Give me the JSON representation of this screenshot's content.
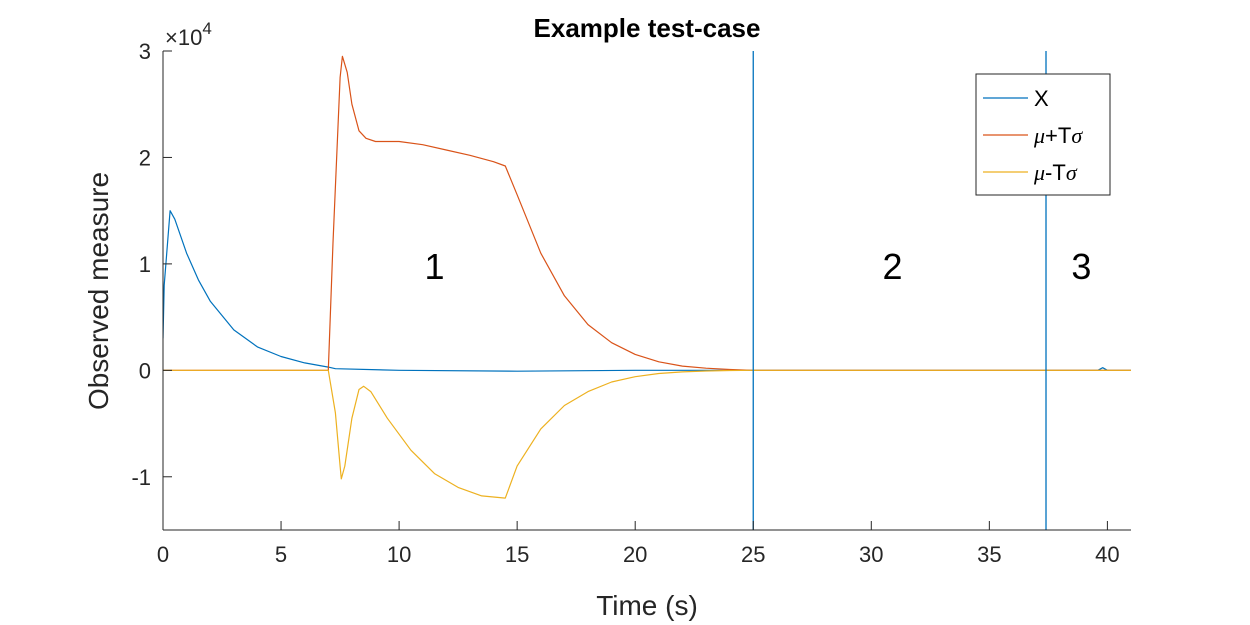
{
  "chart_data": {
    "type": "line",
    "title": "Example test-case",
    "xlabel": "Time (s)",
    "ylabel": "Observed measure",
    "xlim": [
      0,
      41
    ],
    "ylim": [
      -15000,
      30000
    ],
    "x_ticks": [
      0,
      5,
      10,
      15,
      20,
      25,
      30,
      35,
      40
    ],
    "y_ticks": [
      -10000,
      0,
      10000,
      20000,
      30000
    ],
    "y_tick_labels": [
      "-1",
      "0",
      "1",
      "2",
      "3"
    ],
    "y_multiplier": {
      "base": "×10",
      "exponent": "4"
    },
    "grid": false,
    "legend_position": "top-right",
    "vertical_lines": [
      25,
      37.4
    ],
    "region_labels": [
      {
        "text": "1",
        "x": 11.5,
        "y": 9800
      },
      {
        "text": "2",
        "x": 30.9,
        "y": 9800
      },
      {
        "text": "3",
        "x": 38.9,
        "y": 9800
      }
    ],
    "colors": {
      "X": "#0072BD",
      "upper": "#D95319",
      "lower": "#EDB120",
      "vline": "#0072BD",
      "axis": "#262626"
    },
    "series": [
      {
        "key": "X",
        "name_parts": [
          "X"
        ],
        "x": [
          0,
          0.05,
          0.3,
          0.5,
          1,
          1.5,
          2,
          3,
          4,
          5,
          6,
          7,
          7.3,
          10,
          15,
          20,
          25,
          30,
          35,
          39.6,
          39.8,
          40,
          41
        ],
        "y": [
          3000,
          8000,
          15000,
          14200,
          11000,
          8500,
          6500,
          3800,
          2200,
          1300,
          700,
          300,
          150,
          0,
          -80,
          0,
          0,
          0,
          0,
          0,
          250,
          0,
          0
        ]
      },
      {
        "key": "upper",
        "name_parts": [
          "μ",
          "+T",
          "σ"
        ],
        "x": [
          0,
          7,
          7.2,
          7.5,
          7.6,
          7.8,
          8,
          8.3,
          8.6,
          9,
          10,
          11,
          12,
          13,
          14,
          14.5,
          15,
          16,
          17,
          18,
          19,
          20,
          21,
          22,
          23,
          24,
          25,
          41
        ],
        "y": [
          0,
          0,
          12000,
          27500,
          29500,
          28000,
          25000,
          22500,
          21800,
          21500,
          21500,
          21200,
          20700,
          20200,
          19600,
          19200,
          16500,
          11000,
          7000,
          4300,
          2600,
          1500,
          800,
          400,
          200,
          80,
          0,
          0
        ]
      },
      {
        "key": "lower",
        "name_parts": [
          "μ",
          "-T",
          "σ"
        ],
        "x": [
          0,
          7,
          7.3,
          7.5,
          7.55,
          7.7,
          8,
          8.3,
          8.5,
          8.8,
          9.5,
          10.5,
          11.5,
          12.5,
          13.5,
          14.5,
          15,
          16,
          17,
          18,
          19,
          20,
          21,
          22,
          23,
          24,
          25,
          41
        ],
        "y": [
          0,
          0,
          -4000,
          -9000,
          -10200,
          -9000,
          -4500,
          -1800,
          -1500,
          -2000,
          -4500,
          -7500,
          -9700,
          -11000,
          -11800,
          -12000,
          -9000,
          -5500,
          -3300,
          -2000,
          -1100,
          -600,
          -300,
          -150,
          -60,
          -20,
          0,
          0
        ]
      }
    ]
  }
}
